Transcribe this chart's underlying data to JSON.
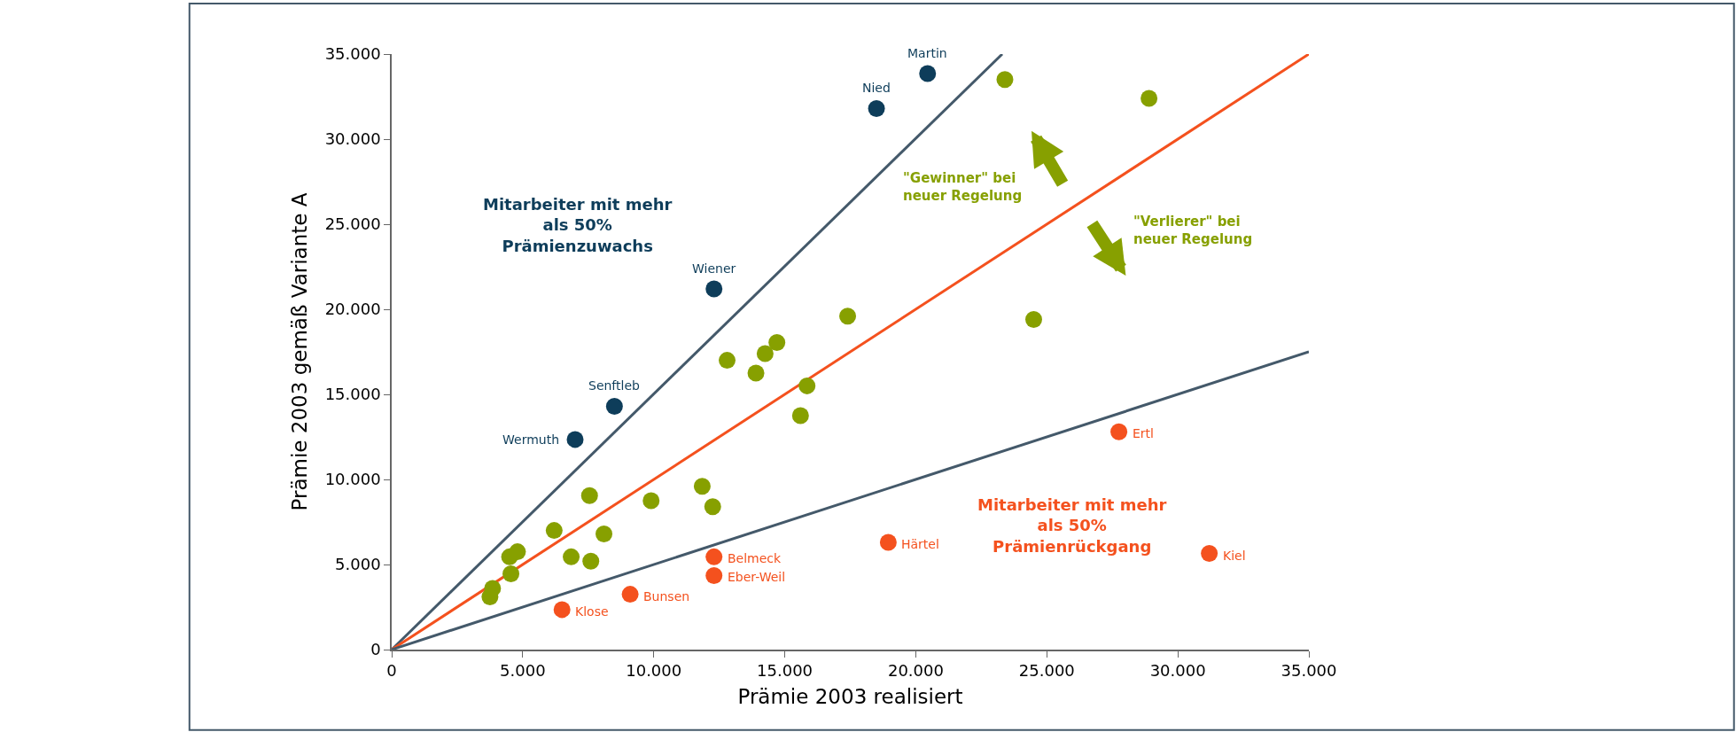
{
  "chart_data": {
    "type": "scatter",
    "xlabel": "Prämie 2003 realisiert",
    "ylabel": "Prämie 2003 gemäß Variante A",
    "xlim": [
      0,
      35000
    ],
    "ylim": [
      0,
      35000
    ],
    "xticks": [
      0,
      {
        "value": 5000,
        "label": "5.000"
      },
      {
        "value": 10000,
        "label": "10.000"
      },
      {
        "value": 15000,
        "label": "15.000"
      },
      {
        "value": 20000,
        "label": "20.000"
      },
      {
        "value": 25000,
        "label": "25.000"
      },
      {
        "value": 30000,
        "label": "30.000"
      },
      {
        "value": 35000,
        "label": "35.000"
      }
    ],
    "yticks": [
      0,
      {
        "value": 5000,
        "label": "5.000"
      },
      {
        "value": 10000,
        "label": "10.000"
      },
      {
        "value": 15000,
        "label": "15.000"
      },
      {
        "value": 20000,
        "label": "20.000"
      },
      {
        "value": 25000,
        "label": "25.000"
      },
      {
        "value": 30000,
        "label": "30.000"
      },
      {
        "value": 35000,
        "label": "35.000"
      }
    ],
    "marker": "circle",
    "series": [
      {
        "type": "line",
        "marker": "none",
        "color": "#44596a",
        "x": [
          0,
          23300
        ],
        "values": [
          0,
          35000
        ]
      },
      {
        "type": "line",
        "marker": "none",
        "color": "#f4511e",
        "x": [
          0,
          35000
        ],
        "values": [
          0,
          35000
        ]
      },
      {
        "type": "line",
        "marker": "none",
        "color": "#44596a",
        "x": [
          0,
          35000
        ],
        "values": [
          0,
          17500
        ]
      },
      {
        "color": "#87a000",
        "x": [
          17400,
          14700,
          23400,
          28900,
          24500,
          12800,
          14250,
          13900,
          15850,
          15600,
          7550,
          9900,
          11850,
          12250,
          6200,
          8100,
          4500,
          4800,
          6850,
          7600,
          4550,
          3850,
          3750
        ],
        "values": [
          19600,
          18050,
          33500,
          32400,
          19400,
          17000,
          17400,
          16250,
          15500,
          13750,
          9050,
          8750,
          9600,
          8400,
          7000,
          6800,
          5450,
          5750,
          5450,
          5200,
          4450,
          3600,
          3100
        ]
      },
      {
        "color": "#0e3d5a",
        "x": [
          20450,
          18500,
          12300,
          8500,
          7000
        ],
        "values": [
          33850,
          31800,
          21200,
          14300,
          12350
        ]
      },
      {
        "color": "#f4511e",
        "x": [
          27750,
          18950,
          31200,
          12300,
          12300,
          9100,
          6500
        ],
        "values": [
          12800,
          6300,
          5650,
          5450,
          4350,
          3250,
          2350
        ]
      }
    ],
    "annotations": [
      "Mitarbeiter mit mehr\nals 50%\nPrämienzuwachs",
      "Mitarbeiter mit mehr\nals 50%\nPrämienrückgang",
      "\"Gewinner\" bei\nneuer Regelung",
      "\"Verlierer\" bei\nneuer Regelung",
      {
        "text": "Martin",
        "x": 20450,
        "y": 33850
      },
      {
        "text": "Nied",
        "x": 18500,
        "y": 31800
      },
      {
        "text": "Wiener",
        "x": 12300,
        "y": 21200
      },
      {
        "text": "Senftleb",
        "x": 8500,
        "y": 14300
      },
      {
        "text": "Wermuth",
        "x": 7000,
        "y": 12350
      },
      {
        "text": "Ertl",
        "x": 27750,
        "y": 12800
      },
      {
        "text": "Härtel",
        "x": 18950,
        "y": 6300
      },
      {
        "text": "Kiel",
        "x": 31200,
        "y": 5650
      },
      {
        "text": "Belmeck",
        "x": 12300,
        "y": 5450
      },
      {
        "text": "Eber-Weil",
        "x": 12300,
        "y": 4350
      },
      {
        "text": "Bunsen",
        "x": 9100,
        "y": 3250
      },
      {
        "text": "Klose",
        "x": 6500,
        "y": 2350
      }
    ]
  }
}
